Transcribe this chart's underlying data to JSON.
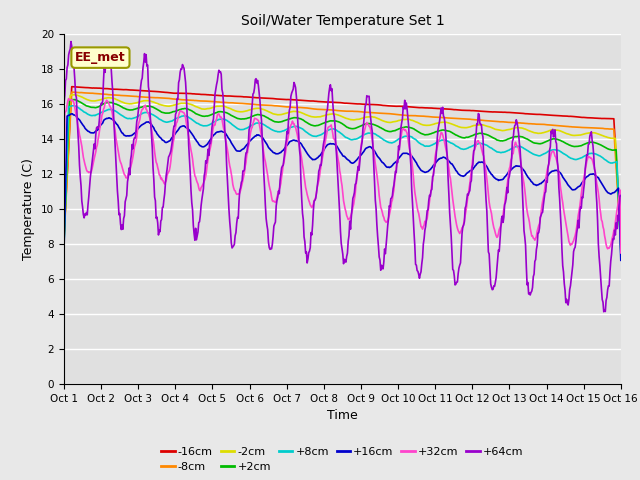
{
  "title": "Soil/Water Temperature Set 1",
  "xlabel": "Time",
  "ylabel": "Temperature (C)",
  "xlim": [
    0,
    15
  ],
  "ylim": [
    0,
    20
  ],
  "yticks": [
    0,
    2,
    4,
    6,
    8,
    10,
    12,
    14,
    16,
    18,
    20
  ],
  "xtick_labels": [
    "Oct 1",
    "Oct 2",
    "Oct 3",
    "Oct 4",
    "Oct 5",
    "Oct 6",
    "Oct 7",
    "Oct 8",
    "Oct 9",
    "Oct 10",
    "Oct 11",
    "Oct 12",
    "Oct 13",
    "Oct 14",
    "Oct 15",
    "Oct 16"
  ],
  "series_colors": [
    "#dd0000",
    "#ff8800",
    "#dddd00",
    "#00bb00",
    "#00cccc",
    "#0000cc",
    "#ff44cc",
    "#9900cc"
  ],
  "series_labels": [
    "-16cm",
    "-8cm",
    "-2cm",
    "+2cm",
    "+8cm",
    "+16cm",
    "+32cm",
    "+64cm"
  ],
  "annotation_text": "EE_met",
  "annotation_color": "#880000",
  "annotation_bg": "#ffffcc",
  "annotation_edge": "#999900",
  "plot_bg": "#e0e0e0",
  "fig_bg": "#e8e8e8"
}
